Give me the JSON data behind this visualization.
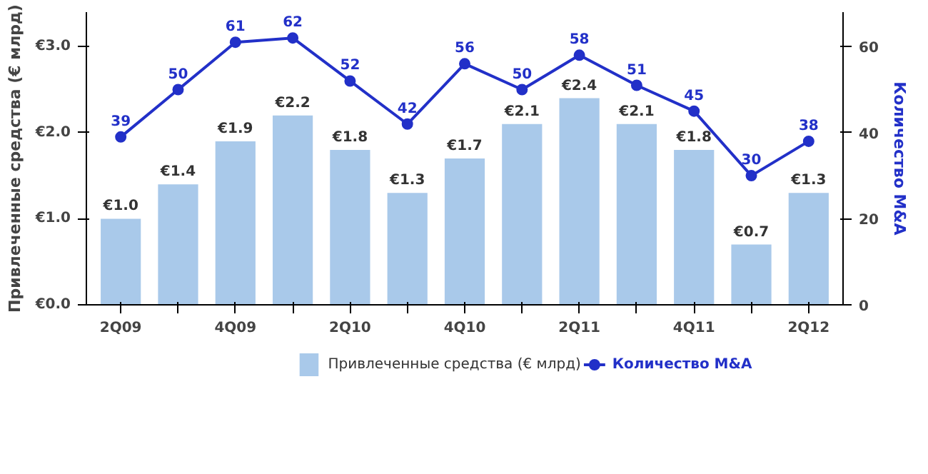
{
  "chart_data": {
    "type": "bar",
    "xlabel": null,
    "ylabel": "Привлеченные средства (€ млрд)",
    "y2label": "Количество M&A",
    "categories": [
      "2Q09",
      null,
      "4Q09",
      null,
      "2Q10",
      null,
      "4Q10",
      null,
      "2Q11",
      null,
      "4Q11",
      null,
      "2Q12"
    ],
    "series": [
      {
        "name": "Привлеченные средства (€ млрд)",
        "color": "#a9c9ea",
        "values": [
          1.0,
          1.4,
          1.9,
          2.2,
          1.8,
          1.3,
          1.7,
          2.1,
          2.4,
          2.1,
          1.8,
          0.7,
          1.3
        ],
        "value_labels": [
          "€1.0",
          "€1.4",
          "€1.9",
          "€2.2",
          "€1.8",
          "€1.3",
          "€1.7",
          "€2.1",
          "€2.4",
          "€2.1",
          "€1.8",
          "€0.7",
          "€1.3"
        ]
      },
      {
        "name": "Количество M&A",
        "type": "line",
        "axis": "y2",
        "color": "#2230c8",
        "marker": "circle",
        "values": [
          39,
          50,
          61,
          62,
          52,
          42,
          56,
          50,
          58,
          51,
          45,
          30,
          38
        ],
        "data_labels": true
      }
    ],
    "ylim": [
      0,
      3.4
    ],
    "yticks": [
      {
        "value": 0,
        "label": "€0.0"
      },
      {
        "value": 1,
        "label": "€1.0"
      },
      {
        "value": 2,
        "label": "€2.0"
      },
      {
        "value": 3,
        "label": "€3.0"
      }
    ],
    "y2lim": [
      0,
      68
    ],
    "y2ticks": [
      0,
      20,
      40,
      60
    ],
    "grid": false,
    "legend": "bottom"
  }
}
